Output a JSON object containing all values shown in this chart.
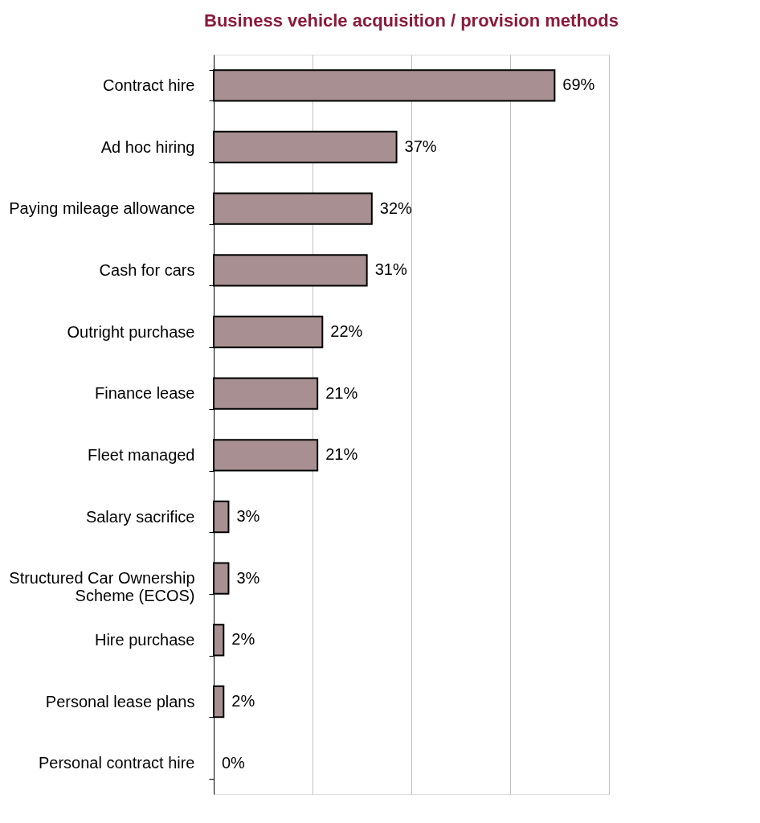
{
  "chart_data": {
    "type": "bar",
    "orientation": "horizontal",
    "title": "Business vehicle acquisition / provision methods",
    "categories": [
      "Contract hire",
      "Ad hoc hiring",
      "Paying mileage allowance",
      "Cash for cars",
      "Outright purchase",
      "Finance lease",
      "Fleet managed",
      "Salary sacrifice",
      "Structured Car Ownership\nScheme (ECOS)",
      "Hire purchase",
      "Personal lease plans",
      "Personal contract hire"
    ],
    "values": [
      69,
      37,
      32,
      31,
      22,
      21,
      21,
      3,
      3,
      2,
      2,
      0
    ],
    "value_labels": [
      "69%",
      "37%",
      "32%",
      "31%",
      "22%",
      "21%",
      "21%",
      "3%",
      "3%",
      "2%",
      "2%",
      "0%"
    ],
    "color": "#a89092",
    "xlim": [
      0,
      80
    ],
    "xticks": [
      {
        "value": 0,
        "label": null
      },
      {
        "value": 20,
        "label": null
      },
      {
        "value": 40,
        "label": null
      },
      {
        "value": 60,
        "label": null
      },
      {
        "value": 80,
        "label": null
      }
    ],
    "grid": "x",
    "tick_labels": "y"
  }
}
